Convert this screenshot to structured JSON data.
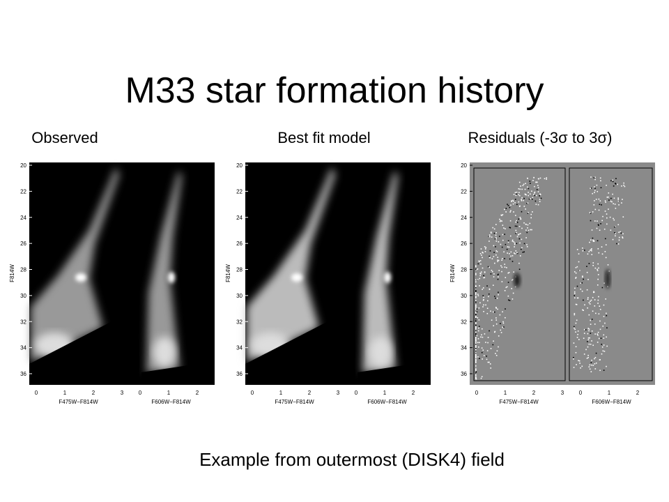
{
  "title": "M33 star formation history",
  "panel_labels": [
    "Observed",
    "Best fit model",
    "Residuals (-3σ to 3σ)"
  ],
  "plot": {
    "y_label": "F814W",
    "y_ticks": [
      "20",
      "22",
      "24",
      "26",
      "28",
      "30",
      "32",
      "34",
      "36"
    ],
    "x_ticks_left": [
      "0",
      "1",
      "2",
      "3"
    ],
    "x_ticks_right": [
      "0",
      "1",
      "2"
    ],
    "x_labels": [
      "F475W−F814W",
      "F606W−F814W"
    ]
  },
  "caption": "Example from outermost (DISK4) field"
}
